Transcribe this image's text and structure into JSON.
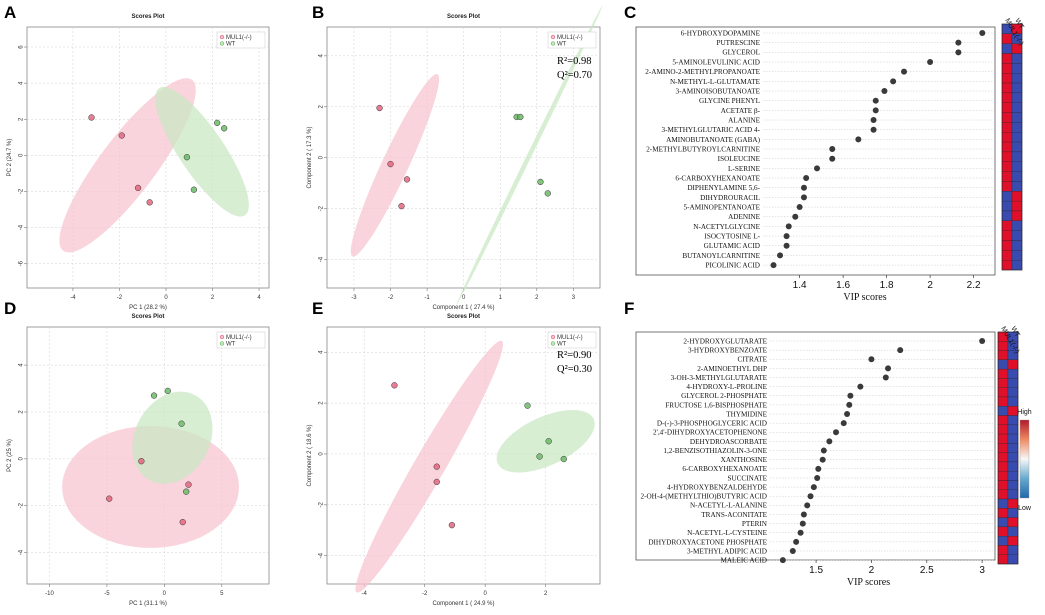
{
  "chart_data": [
    {
      "panel": "A",
      "type": "scatter",
      "title": "Scores Plot",
      "xlabel": "PC 1 (28.2 %)",
      "ylabel": "PC 2 (24.7 %)",
      "xlim": [
        -5.2,
        4.9
      ],
      "ylim": [
        -6.9,
        6.5
      ],
      "xticks": [
        -4,
        -2,
        0,
        2,
        4
      ],
      "yticks": [
        -6,
        -4,
        -2,
        0,
        2,
        4,
        6
      ],
      "legend": [
        "MUL1(-/-)",
        "WT"
      ],
      "series": [
        {
          "name": "MUL1(-/-)",
          "color": "#e3667f",
          "fill": "#f7c3cf",
          "points": [
            [
              -3.2,
              2.1
            ],
            [
              -1.9,
              1.1
            ],
            [
              -1.2,
              -1.8
            ],
            [
              -0.7,
              -2.6
            ]
          ],
          "ellipse": {
            "cx": -1.65,
            "cy": -0.55,
            "rx": 4.6,
            "ry": 1.55,
            "angle": -53
          }
        },
        {
          "name": "WT",
          "color": "#6cba67",
          "fill": "#c8e8c2",
          "points": [
            [
              2.2,
              1.8
            ],
            [
              2.5,
              1.5
            ],
            [
              0.9,
              -0.1
            ],
            [
              1.2,
              -1.9
            ]
          ],
          "ellipse": {
            "cx": 1.55,
            "cy": 0.2,
            "rx": 3.3,
            "ry": 1.25,
            "angle": 56
          }
        }
      ]
    },
    {
      "panel": "B",
      "type": "scatter",
      "title": "Scores Plot",
      "xlabel": "Component 1 ( 27.4 %)",
      "ylabel": "Component 2 ( 17.3 %)",
      "xlim": [
        -3.3,
        3.4
      ],
      "ylim": [
        -4.8,
        4.7
      ],
      "xticks": [
        -3,
        -2,
        -1,
        0,
        1,
        2,
        3
      ],
      "yticks": [
        -4,
        -2,
        0,
        2,
        4
      ],
      "legend": [
        "MUL1(-/-)",
        "WT"
      ],
      "annotation": [
        "R²=0.98",
        "Q²=0.70"
      ],
      "series": [
        {
          "name": "MUL1(-/-)",
          "color": "#e3667f",
          "fill": "#f7c3cf",
          "points": [
            [
              -2.3,
              1.95
            ],
            [
              -2.0,
              -0.25
            ],
            [
              -1.55,
              -0.85
            ],
            [
              -1.7,
              -1.9
            ]
          ],
          "ellipse": {
            "cx": -1.88,
            "cy": -0.3,
            "rx": 2.75,
            "ry": 0.52,
            "angle": -65
          }
        },
        {
          "name": "WT",
          "color": "#6cba67",
          "fill": "#c8e8c2",
          "points": [
            [
              1.45,
              1.6
            ],
            [
              1.55,
              1.6
            ],
            [
              2.1,
              -0.95
            ],
            [
              2.3,
              -1.4
            ]
          ],
          "ellipse": {
            "cx": 1.8,
            "cy": 0.1,
            "rx": 4.55,
            "ry": 0.09,
            "angle": -64
          }
        }
      ]
    },
    {
      "panel": "C",
      "type": "scatter",
      "subtype": "vip",
      "xlabel": "VIP scores",
      "xlim": [
        1.25,
        2.28
      ],
      "xticks": [
        1.4,
        1.6,
        1.8,
        2.0,
        2.2
      ],
      "heatmap_columns": [
        "MUL1(-/-)",
        "WT"
      ],
      "features": [
        "6-HYDROXYDOPAMINE",
        "PUTRESCINE",
        "GLYCEROL",
        "5-AMINOLEVULINIC ACID",
        "2-AMINO-2-METHYLPROPANOATE",
        "N-METHYL-L-GLUTAMATE",
        "3-AMINOISOBUTANOATE",
        "GLYCINE PHENYL",
        "ACETATE β-",
        "ALANINE",
        "3-METHYLGLUTARIC ACID 4-",
        "AMINOBUTANOATE (GABA)",
        "2-METHYLBUTYROYLCARNITINE",
        "ISOLEUCINE",
        "L-SERINE",
        "6-CARBOXYHEXANOATE",
        "DIPHENYLAMINE 5,6-",
        "DIHYDROURACIL",
        "5-AMINOPENTANOATE",
        "ADENINE",
        "N-ACETYLGLYCINE",
        "ISOCYTOSINE L-",
        "GLUTAMIC ACID",
        "BUTANOYLCARNITINE",
        "PICOLINIC ACID"
      ],
      "values": [
        2.24,
        2.13,
        2.13,
        2.0,
        1.88,
        1.83,
        1.79,
        1.75,
        1.75,
        1.74,
        1.74,
        1.67,
        1.55,
        1.55,
        1.48,
        1.43,
        1.42,
        1.42,
        1.4,
        1.38,
        1.35,
        1.34,
        1.34,
        1.31,
        1.28
      ],
      "heatmap": [
        [
          "#3a4bb0",
          "#e0102a"
        ],
        [
          "#e0102a",
          "#3a4bb0"
        ],
        [
          "#3a4bb0",
          "#e0102a"
        ],
        [
          "#e0102a",
          "#3a4bb0"
        ],
        [
          "#e0102a",
          "#3a4bb0"
        ],
        [
          "#e0102a",
          "#3a4bb0"
        ],
        [
          "#e0102a",
          "#3a4bb0"
        ],
        [
          "#e0102a",
          "#3a4bb0"
        ],
        [
          "#e0102a",
          "#3a4bb0"
        ],
        [
          "#e0102a",
          "#3a4bb0"
        ],
        [
          "#e0102a",
          "#3a4bb0"
        ],
        [
          "#e0102a",
          "#3a4bb0"
        ],
        [
          "#e0102a",
          "#3a4bb0"
        ],
        [
          "#e0102a",
          "#3a4bb0"
        ],
        [
          "#e0102a",
          "#3a4bb0"
        ],
        [
          "#e0102a",
          "#3a4bb0"
        ],
        [
          "#e0102a",
          "#3a4bb0"
        ],
        [
          "#3a4bb0",
          "#e0102a"
        ],
        [
          "#3a4bb0",
          "#e0102a"
        ],
        [
          "#3a4bb0",
          "#e0102a"
        ],
        [
          "#e0102a",
          "#3a4bb0"
        ],
        [
          "#e0102a",
          "#3a4bb0"
        ],
        [
          "#e0102a",
          "#3a4bb0"
        ],
        [
          "#e0102a",
          "#3a4bb0"
        ],
        [
          "#e0102a",
          "#3a4bb0"
        ]
      ]
    },
    {
      "panel": "D",
      "type": "scatter",
      "title": "Scores Plot",
      "xlabel": "PC 1 (31.1 %)",
      "ylabel": "PC 2 (25 %)",
      "xlim": [
        -11,
        8.5
      ],
      "ylim": [
        -5.0,
        5.2
      ],
      "xticks": [
        -10,
        -5,
        0,
        5
      ],
      "yticks": [
        -4,
        -2,
        0,
        2,
        4
      ],
      "legend": [
        "MUL1(-/-)",
        "WT"
      ],
      "series": [
        {
          "name": "MUL1(-/-)",
          "color": "#e3667f",
          "fill": "#f7c3cf",
          "points": [
            [
              -4.8,
              -1.7
            ],
            [
              -2.0,
              -0.1
            ],
            [
              1.6,
              -2.7
            ],
            [
              2.1,
              -1.1
            ]
          ],
          "ellipse": {
            "cx": -1.2,
            "cy": -1.2,
            "rx": 7.7,
            "ry": 2.6,
            "angle": 0
          }
        },
        {
          "name": "WT",
          "color": "#6cba67",
          "fill": "#c8e8c2",
          "points": [
            [
              -0.9,
              2.7
            ],
            [
              0.3,
              2.9
            ],
            [
              1.5,
              1.5
            ],
            [
              1.9,
              -1.4
            ]
          ],
          "ellipse": {
            "cx": 0.7,
            "cy": 0.9,
            "rx": 4.2,
            "ry": 1.6,
            "angle": -62
          }
        }
      ]
    },
    {
      "panel": "E",
      "type": "scatter",
      "title": "Scores Plot",
      "xlabel": "Component 1 ( 24.9 %)",
      "ylabel": "Component 2 ( 18.6 %)",
      "xlim": [
        -4.7,
        3.4
      ],
      "ylim": [
        -4.8,
        4.6
      ],
      "xticks": [
        -4,
        -2,
        0,
        2
      ],
      "yticks": [
        -4,
        -2,
        0,
        2,
        4
      ],
      "legend": [
        "MUL1(-/-)",
        "WT"
      ],
      "annotation": [
        "R²=0.90",
        "Q²=0.30"
      ],
      "series": [
        {
          "name": "MUL1(-/-)",
          "color": "#e3667f",
          "fill": "#f7c3cf",
          "points": [
            [
              -3.0,
              2.7
            ],
            [
              -1.6,
              -0.5
            ],
            [
              -1.6,
              -1.1
            ],
            [
              -1.1,
              -2.8
            ]
          ],
          "ellipse": {
            "cx": -1.85,
            "cy": -0.5,
            "rx": 4.8,
            "ry": 0.6,
            "angle": -60
          }
        },
        {
          "name": "WT",
          "color": "#6cba67",
          "fill": "#c8e8c2",
          "points": [
            [
              1.4,
              1.9
            ],
            [
              2.1,
              0.5
            ],
            [
              1.8,
              -0.1
            ],
            [
              2.6,
              -0.2
            ]
          ],
          "ellipse": {
            "cx": 2.0,
            "cy": 0.5,
            "rx": 1.75,
            "ry": 0.95,
            "angle": -25
          }
        }
      ]
    },
    {
      "panel": "F",
      "type": "scatter",
      "subtype": "vip",
      "xlabel": "VIP scores",
      "xlim": [
        1.12,
        3.08
      ],
      "xticks": [
        1.5,
        2.0,
        2.5,
        3.0
      ],
      "heatmap_columns": [
        "MUL1(-/-)",
        "WT"
      ],
      "colorbar": {
        "high": "High",
        "low": "Low"
      },
      "features": [
        "2-HYDROXYGLUTARATE",
        "3-HYDROXYBENZOATE",
        "CITRATE",
        "2-AMINOETHYL DHP",
        "3-OH-3-METHYLGLUTARATE",
        "4-HYDROXY-L-PROLINE",
        "GLYCEROL 2-PHOSPHATE",
        "FRUCTOSE 1,6-BISPHOSPHATE",
        "THYMIDINE",
        "D-(-)-3-PHOSPHOGLYCERIC ACID",
        "2',4'-DIHYDROXYACETOPHENONE",
        "DEHYDROASCORBATE",
        "1,2-BENZISOTHIAZOLIN-3-ONE",
        "XANTHOSINE",
        "6-CARBOXYHEXANOATE",
        "SUCCINATE",
        "4-HYDROXYBENZALDEHYDE",
        "2-OH-4-(METHYLTHIO)BUTYRIC ACID",
        "N-ACETYL-L-ALANINE",
        "TRANS-ACONITATE",
        "PTERIN",
        "N-ACETYL-L-CYSTEINE",
        "DIHYDROXYACETONE PHOSPHATE",
        "3-METHYL ADIPIC ACID",
        "MALEIC ACID"
      ],
      "values": [
        3.0,
        2.26,
        2.0,
        2.15,
        2.13,
        1.9,
        1.81,
        1.8,
        1.78,
        1.75,
        1.68,
        1.62,
        1.57,
        1.56,
        1.52,
        1.51,
        1.48,
        1.45,
        1.42,
        1.39,
        1.38,
        1.36,
        1.32,
        1.29,
        1.2
      ],
      "heatmap": [
        [
          "#e0102a",
          "#3a4bb0"
        ],
        [
          "#e0102a",
          "#3a4bb0"
        ],
        [
          "#e0102a",
          "#3a4bb0"
        ],
        [
          "#3a4bb0",
          "#e0102a"
        ],
        [
          "#e0102a",
          "#3a4bb0"
        ],
        [
          "#e0102a",
          "#3a4bb0"
        ],
        [
          "#e0102a",
          "#3a4bb0"
        ],
        [
          "#e0102a",
          "#3a4bb0"
        ],
        [
          "#3a4bb0",
          "#e0102a"
        ],
        [
          "#e0102a",
          "#3a4bb0"
        ],
        [
          "#e0102a",
          "#3a4bb0"
        ],
        [
          "#e0102a",
          "#3a4bb0"
        ],
        [
          "#e0102a",
          "#3a4bb0"
        ],
        [
          "#e0102a",
          "#3a4bb0"
        ],
        [
          "#e0102a",
          "#3a4bb0"
        ],
        [
          "#e0102a",
          "#3a4bb0"
        ],
        [
          "#e0102a",
          "#3a4bb0"
        ],
        [
          "#e0102a",
          "#3a4bb0"
        ],
        [
          "#3a4bb0",
          "#e0102a"
        ],
        [
          "#e0102a",
          "#3a4bb0"
        ],
        [
          "#3a4bb0",
          "#e0102a"
        ],
        [
          "#e0102a",
          "#3a4bb0"
        ],
        [
          "#3a4bb0",
          "#e0102a"
        ],
        [
          "#e0102a",
          "#3a4bb0"
        ],
        [
          "#e0102a",
          "#3a4bb0"
        ]
      ]
    }
  ]
}
